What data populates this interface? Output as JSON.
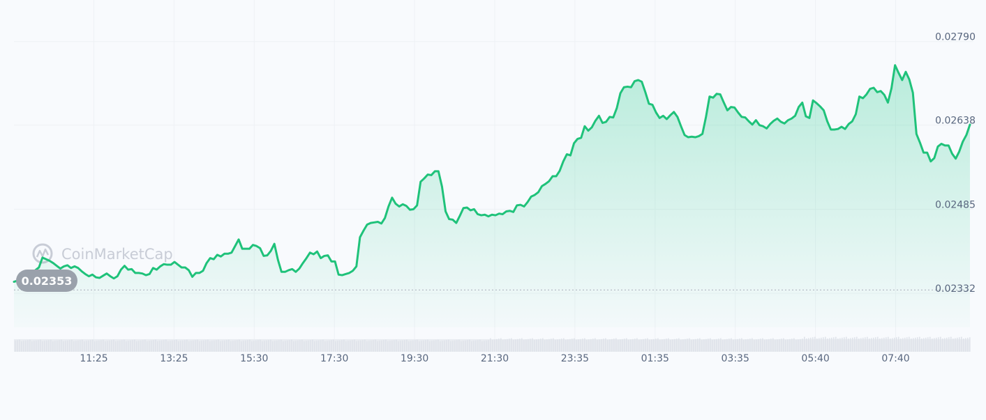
{
  "watermark": "CoinMarketCap",
  "colors": {
    "line": "#1fc27a",
    "fill": "#16c784",
    "grid": "#eef1f5",
    "volume": "#dfe3ea",
    "badge": "#9aa1ab",
    "axis_text": "#58667e"
  },
  "chart_data": {
    "type": "area",
    "title": "",
    "xlabel": "",
    "ylabel": "",
    "ylim": [
      0.0227,
      0.02815
    ],
    "x_range": [
      "10:25",
      "09:00"
    ],
    "x_ticks": [
      "11:25",
      "13:25",
      "15:30",
      "17:30",
      "19:30",
      "21:30",
      "23:35",
      "01:35",
      "03:35",
      "05:40",
      "07:40"
    ],
    "y_ticks": [
      {
        "value": 0.0279,
        "label": "0.02790"
      },
      {
        "value": 0.02638,
        "label": "0.02638"
      },
      {
        "value": 0.02485,
        "label": "0.02485"
      },
      {
        "value": 0.02332,
        "label": "0.02332"
      }
    ],
    "open_price": {
      "value": 0.02353,
      "label": "0.02353"
    },
    "grid": true,
    "series": [
      {
        "values": [
          0.02353,
          0.02355,
          0.02357,
          0.02354,
          0.02361,
          0.02367,
          0.02374,
          0.02379,
          0.02397,
          0.02394,
          0.02391,
          0.02387,
          0.02382,
          0.02377,
          0.02381,
          0.02383,
          0.02378,
          0.02381,
          0.02378,
          0.02372,
          0.02367,
          0.02363,
          0.02366,
          0.02361,
          0.0236,
          0.02364,
          0.02368,
          0.02363,
          0.02359,
          0.02363,
          0.02375,
          0.02382,
          0.02375,
          0.02376,
          0.02369,
          0.02369,
          0.02368,
          0.02365,
          0.02367,
          0.02378,
          0.02375,
          0.02381,
          0.02385,
          0.02384,
          0.02384,
          0.02389,
          0.02384,
          0.02379,
          0.02379,
          0.02374,
          0.02362,
          0.02369,
          0.02369,
          0.02373,
          0.02387,
          0.02396,
          0.02394,
          0.02402,
          0.02399,
          0.02404,
          0.02404,
          0.02406,
          0.02418,
          0.0243,
          0.02413,
          0.02413,
          0.02413,
          0.0242,
          0.02418,
          0.02414,
          0.024,
          0.02401,
          0.02409,
          0.02422,
          0.02393,
          0.02371,
          0.02371,
          0.02374,
          0.02376,
          0.02371,
          0.02377,
          0.02387,
          0.02396,
          0.02406,
          0.02403,
          0.02408,
          0.02396,
          0.024,
          0.02401,
          0.0239,
          0.0239,
          0.02366,
          0.02365,
          0.02367,
          0.02369,
          0.02373,
          0.02381,
          0.02434,
          0.02446,
          0.02457,
          0.0246,
          0.02461,
          0.02462,
          0.02459,
          0.02469,
          0.0249,
          0.02506,
          0.02495,
          0.0249,
          0.02494,
          0.02491,
          0.02484,
          0.02485,
          0.02492,
          0.02535,
          0.02541,
          0.02548,
          0.02547,
          0.02554,
          0.02554,
          0.02526,
          0.02481,
          0.02467,
          0.02466,
          0.0246,
          0.02473,
          0.02487,
          0.02488,
          0.02483,
          0.02485,
          0.02476,
          0.02474,
          0.02475,
          0.02472,
          0.02475,
          0.02474,
          0.02477,
          0.02476,
          0.02481,
          0.02482,
          0.0248,
          0.02492,
          0.02493,
          0.0249,
          0.02498,
          0.02508,
          0.02511,
          0.02516,
          0.02527,
          0.02531,
          0.02536,
          0.02545,
          0.02545,
          0.02555,
          0.02572,
          0.02585,
          0.02583,
          0.02605,
          0.02613,
          0.02615,
          0.02636,
          0.02628,
          0.02634,
          0.02646,
          0.02655,
          0.02642,
          0.02644,
          0.02653,
          0.02652,
          0.02669,
          0.02696,
          0.02707,
          0.02708,
          0.02707,
          0.02718,
          0.0272,
          0.02717,
          0.02698,
          0.02677,
          0.02675,
          0.02661,
          0.02651,
          0.02655,
          0.02649,
          0.02656,
          0.02662,
          0.02653,
          0.02636,
          0.0262,
          0.02616,
          0.02617,
          0.02616,
          0.02618,
          0.02622,
          0.02653,
          0.0269,
          0.02688,
          0.02695,
          0.02694,
          0.02679,
          0.02665,
          0.02671,
          0.0267,
          0.02661,
          0.02653,
          0.02652,
          0.02645,
          0.02639,
          0.02647,
          0.02638,
          0.02636,
          0.02632,
          0.0264,
          0.02646,
          0.0265,
          0.02644,
          0.02641,
          0.02647,
          0.0265,
          0.02655,
          0.02671,
          0.02679,
          0.02654,
          0.02651,
          0.02683,
          0.02678,
          0.02672,
          0.02665,
          0.02645,
          0.0263,
          0.0263,
          0.02631,
          0.02635,
          0.02631,
          0.0264,
          0.02645,
          0.02658,
          0.0269,
          0.02687,
          0.02694,
          0.02704,
          0.02706,
          0.02698,
          0.027,
          0.02693,
          0.02679,
          0.02705,
          0.02747,
          0.02733,
          0.0272,
          0.02735,
          0.02721,
          0.02697,
          0.02622,
          0.02606,
          0.02588,
          0.02588,
          0.02572,
          0.02578,
          0.02599,
          0.02604,
          0.02601,
          0.02601,
          0.02586,
          0.02577,
          0.0259,
          0.02608,
          0.0262,
          0.02639
        ]
      }
    ]
  }
}
